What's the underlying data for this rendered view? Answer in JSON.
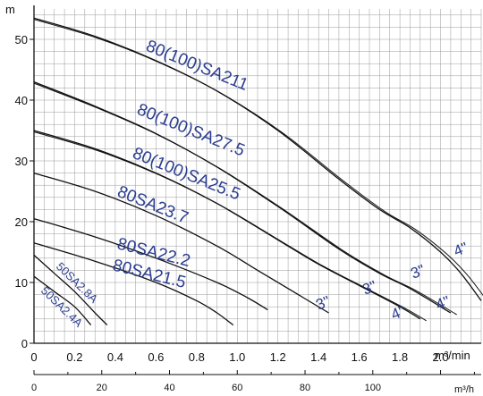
{
  "chart_data": {
    "type": "line",
    "title": "",
    "ylabel": "m",
    "xlabel": "m³/min",
    "x2label": "m³/h",
    "xlim": [
      0,
      2.2
    ],
    "ylim": [
      0,
      55
    ],
    "x_ticks": [
      "0",
      "0.2",
      "0.4",
      "0.6",
      "0.8",
      "1.0",
      "1.2",
      "1.4",
      "1.6",
      "1.8",
      "2.0"
    ],
    "y_ticks": [
      "0",
      "10",
      "20",
      "30",
      "40",
      "50"
    ],
    "x2_ticks": [
      "0",
      "20",
      "40",
      "60",
      "80",
      "100"
    ],
    "grid": true,
    "colors": {
      "curve": "#111111",
      "label": "#2b3d8f",
      "grid": "#9a9a9a"
    },
    "series": [
      {
        "name": "80(100)SA211",
        "pipe_labels": [
          "3\"",
          "4\""
        ],
        "x": [
          0,
          0.3,
          0.6,
          0.9,
          1.2,
          1.5,
          1.7,
          1.85,
          2.0,
          2.1,
          2.2
        ],
        "y": [
          53.5,
          50.5,
          46.5,
          41.5,
          35.0,
          27.0,
          22.0,
          19.0,
          15.0,
          11.5,
          7.0
        ]
      },
      {
        "name": "80(100)SA27.5",
        "pipe_labels": [
          "3\"",
          "4\""
        ],
        "x": [
          0,
          0.3,
          0.6,
          0.9,
          1.2,
          1.5,
          1.7,
          1.85,
          2.05
        ],
        "y": [
          43.0,
          39.0,
          34.5,
          29.0,
          22.5,
          15.5,
          11.5,
          9.0,
          5.0
        ]
      },
      {
        "name": "80(100)SA25.5",
        "pipe_labels": [
          "3\"",
          "4\""
        ],
        "x": [
          0,
          0.3,
          0.6,
          0.9,
          1.2,
          1.4,
          1.6,
          1.8,
          1.9
        ],
        "y": [
          35.0,
          32.0,
          28.0,
          23.0,
          17.0,
          13.0,
          9.5,
          6.0,
          4.0
        ]
      },
      {
        "name": "80SA23.7",
        "x": [
          0,
          0.3,
          0.6,
          0.9,
          1.1,
          1.3,
          1.45
        ],
        "y": [
          28.0,
          25.0,
          21.0,
          16.0,
          12.0,
          8.0,
          5.0
        ]
      },
      {
        "name": "80SA22.2",
        "x": [
          0,
          0.3,
          0.6,
          0.9,
          1.05,
          1.15
        ],
        "y": [
          20.5,
          17.5,
          14.0,
          10.0,
          7.5,
          5.5
        ]
      },
      {
        "name": "80SA21.5",
        "x": [
          0,
          0.3,
          0.6,
          0.8,
          0.9,
          0.98
        ],
        "y": [
          16.5,
          13.5,
          10.0,
          7.0,
          5.0,
          3.0
        ]
      },
      {
        "name": "50SA2.8A",
        "x": [
          0,
          0.1,
          0.2,
          0.3,
          0.36
        ],
        "y": [
          14.5,
          11.5,
          8.5,
          5.0,
          3.0
        ]
      },
      {
        "name": "50SA2.4A",
        "x": [
          0,
          0.1,
          0.2,
          0.28
        ],
        "y": [
          11.0,
          8.5,
          6.0,
          3.0
        ]
      }
    ]
  }
}
